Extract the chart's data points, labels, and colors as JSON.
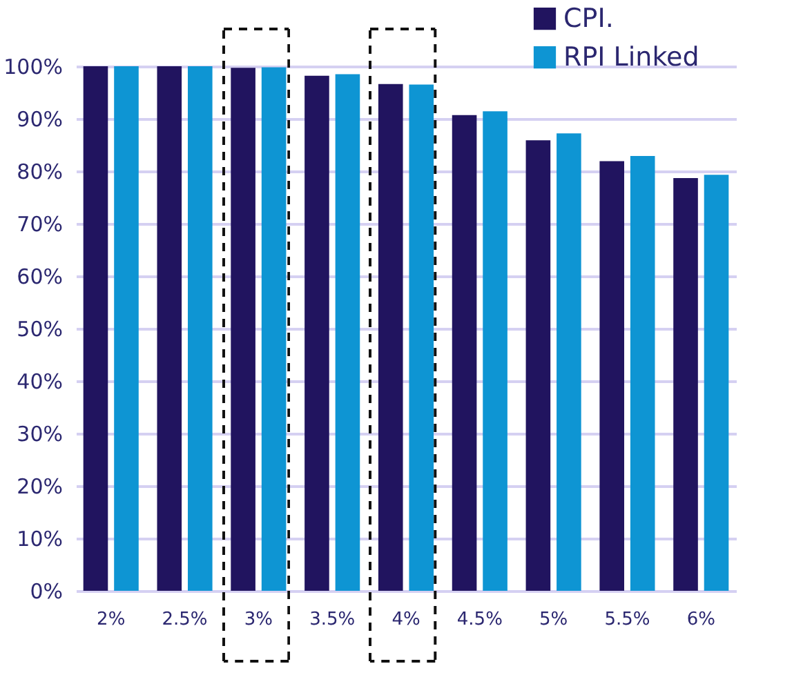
{
  "chart_data": {
    "type": "bar",
    "categories": [
      "2%",
      "2.5%",
      "3%",
      "3.5%",
      "4%",
      "4.5%",
      "5%",
      "5.5%",
      "6%"
    ],
    "series": [
      {
        "name": "CPI.",
        "color": "#21145f",
        "values": [
          100,
          100,
          99.7,
          98.2,
          96.6,
          90.7,
          85.9,
          81.9,
          78.7
        ]
      },
      {
        "name": "RPI Linked",
        "color": "#0e95d3",
        "values": [
          100,
          100,
          99.8,
          98.5,
          96.5,
          91.4,
          87.2,
          82.9,
          79.3
        ]
      }
    ],
    "ylim": [
      0,
      100
    ],
    "yticks": [
      {
        "value": 0,
        "label": "0%"
      },
      {
        "value": 10,
        "label": "10%"
      },
      {
        "value": 20,
        "label": "20%"
      },
      {
        "value": 30,
        "label": "30%"
      },
      {
        "value": 40,
        "label": "40%"
      },
      {
        "value": 50,
        "label": "50%"
      },
      {
        "value": 60,
        "label": "60%"
      },
      {
        "value": 70,
        "label": "70%"
      },
      {
        "value": 80,
        "label": "80%"
      },
      {
        "value": 90,
        "label": "90%"
      },
      {
        "value": 100,
        "label": "100%"
      }
    ],
    "grid": "y",
    "legend": "top right"
  }
}
